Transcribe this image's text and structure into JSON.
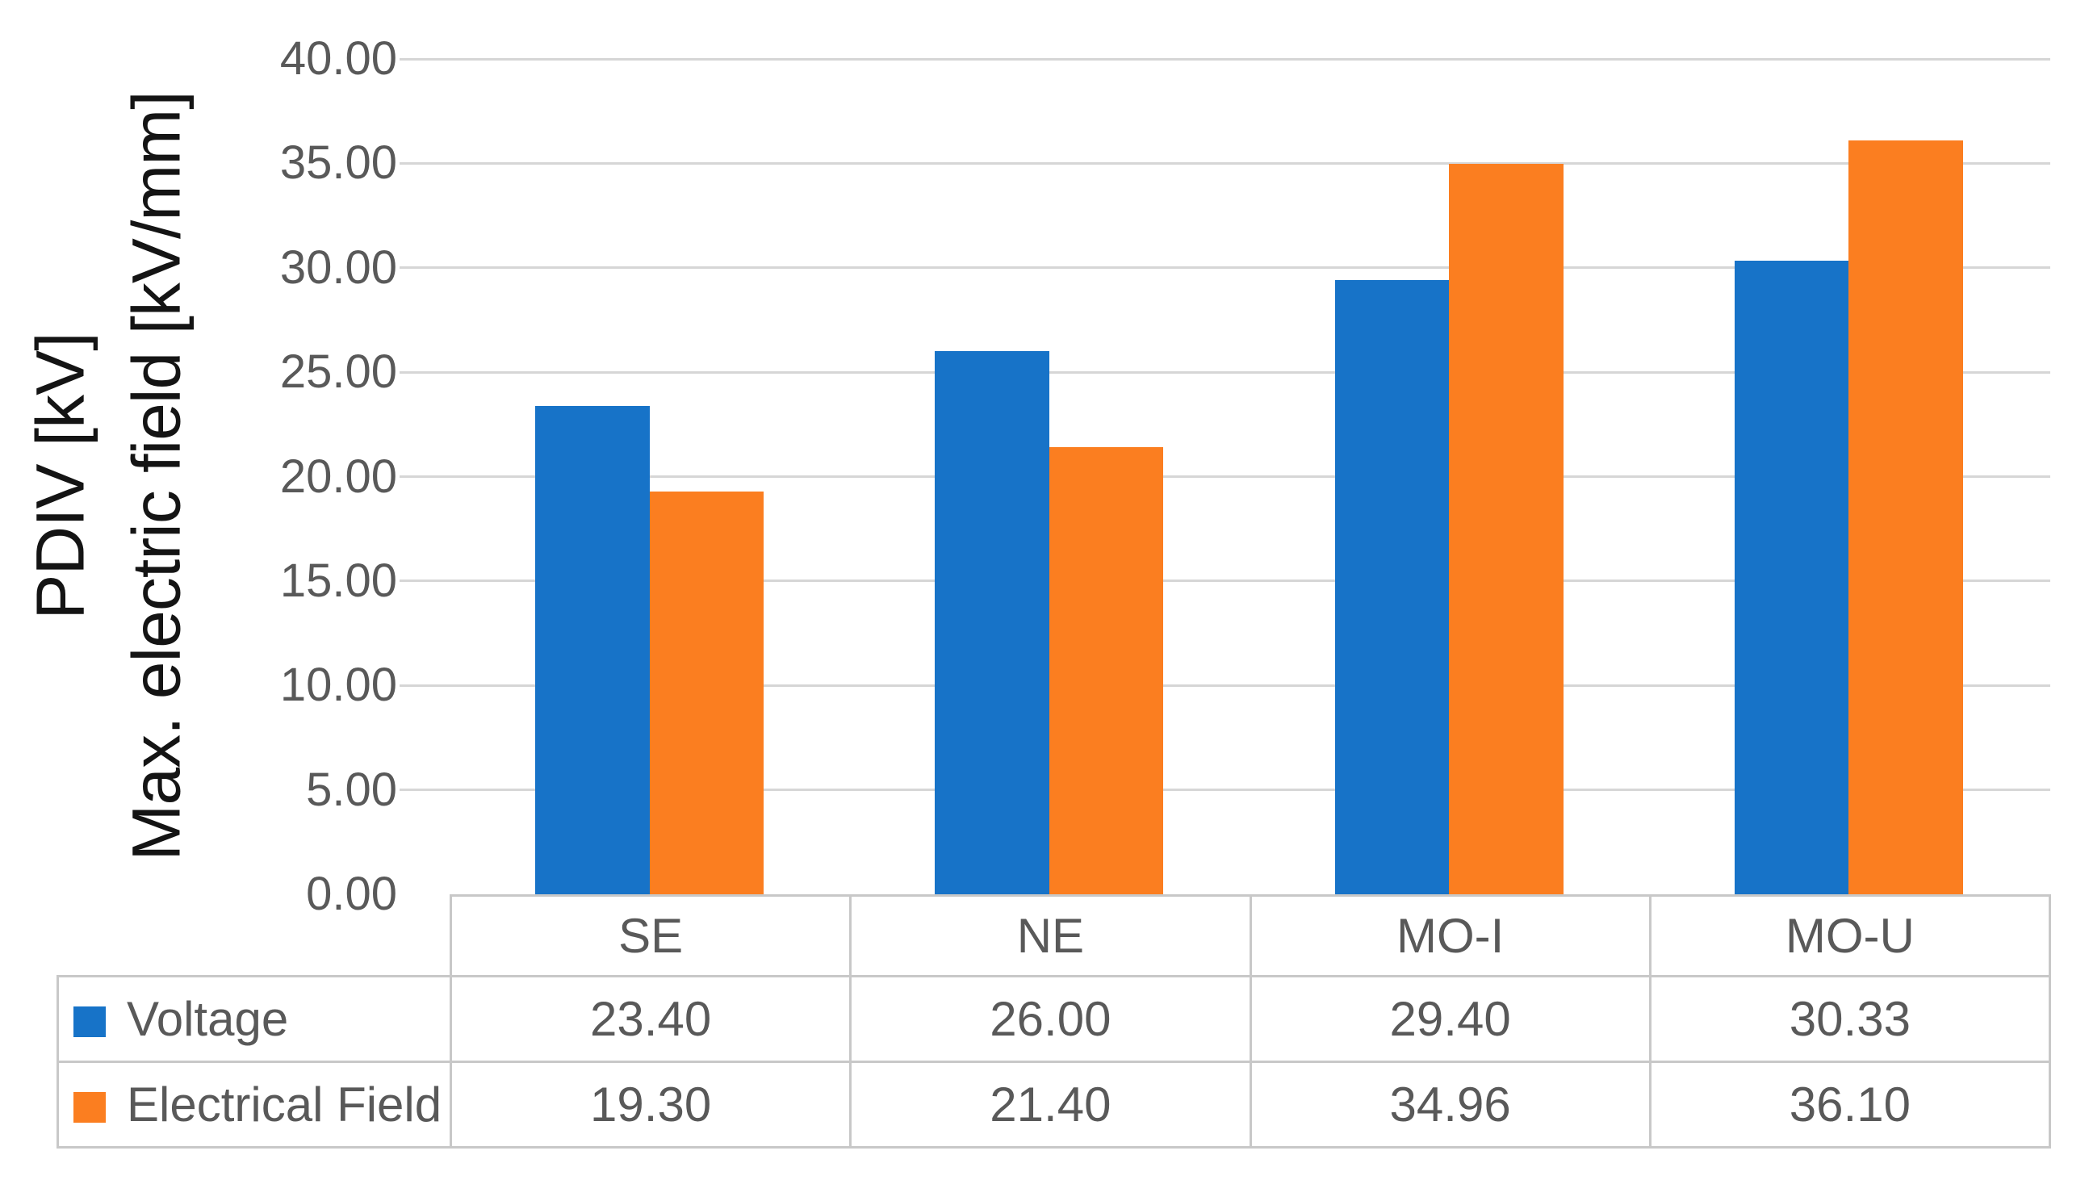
{
  "figure": {
    "background": "#ffffff",
    "grid_color": "#d6d6d6",
    "table_border_color": "#c8c8c8",
    "tick_text_color": "#595959",
    "axis_title_color": "#141414"
  },
  "chart_data": {
    "type": "bar",
    "title": "",
    "xlabel": "",
    "ylabel_lines": [
      "PDIV [kV]",
      "Max. electric field [kV/mm]"
    ],
    "categories": [
      "SE",
      "NE",
      "MO-I",
      "MO-U"
    ],
    "series": [
      {
        "name": "Voltage",
        "color": "#1773C8",
        "values": [
          23.4,
          26.0,
          29.4,
          30.33
        ],
        "value_labels": [
          "23.40",
          "26.00",
          "29.40",
          "30.33"
        ]
      },
      {
        "name": "Electrical Field",
        "color": "#FB7E20",
        "values": [
          19.3,
          21.4,
          34.96,
          36.1
        ],
        "value_labels": [
          "19.30",
          "21.40",
          "34.96",
          "36.10"
        ]
      }
    ],
    "ylim": [
      0,
      40
    ],
    "y_tick_step": 5,
    "y_tick_labels": [
      "0.00",
      "5.00",
      "10.00",
      "15.00",
      "20.00",
      "25.00",
      "30.00",
      "35.00",
      "40.00"
    ],
    "grid": true,
    "legend_position": "table-left-column",
    "gap_ratio": 1.5
  }
}
